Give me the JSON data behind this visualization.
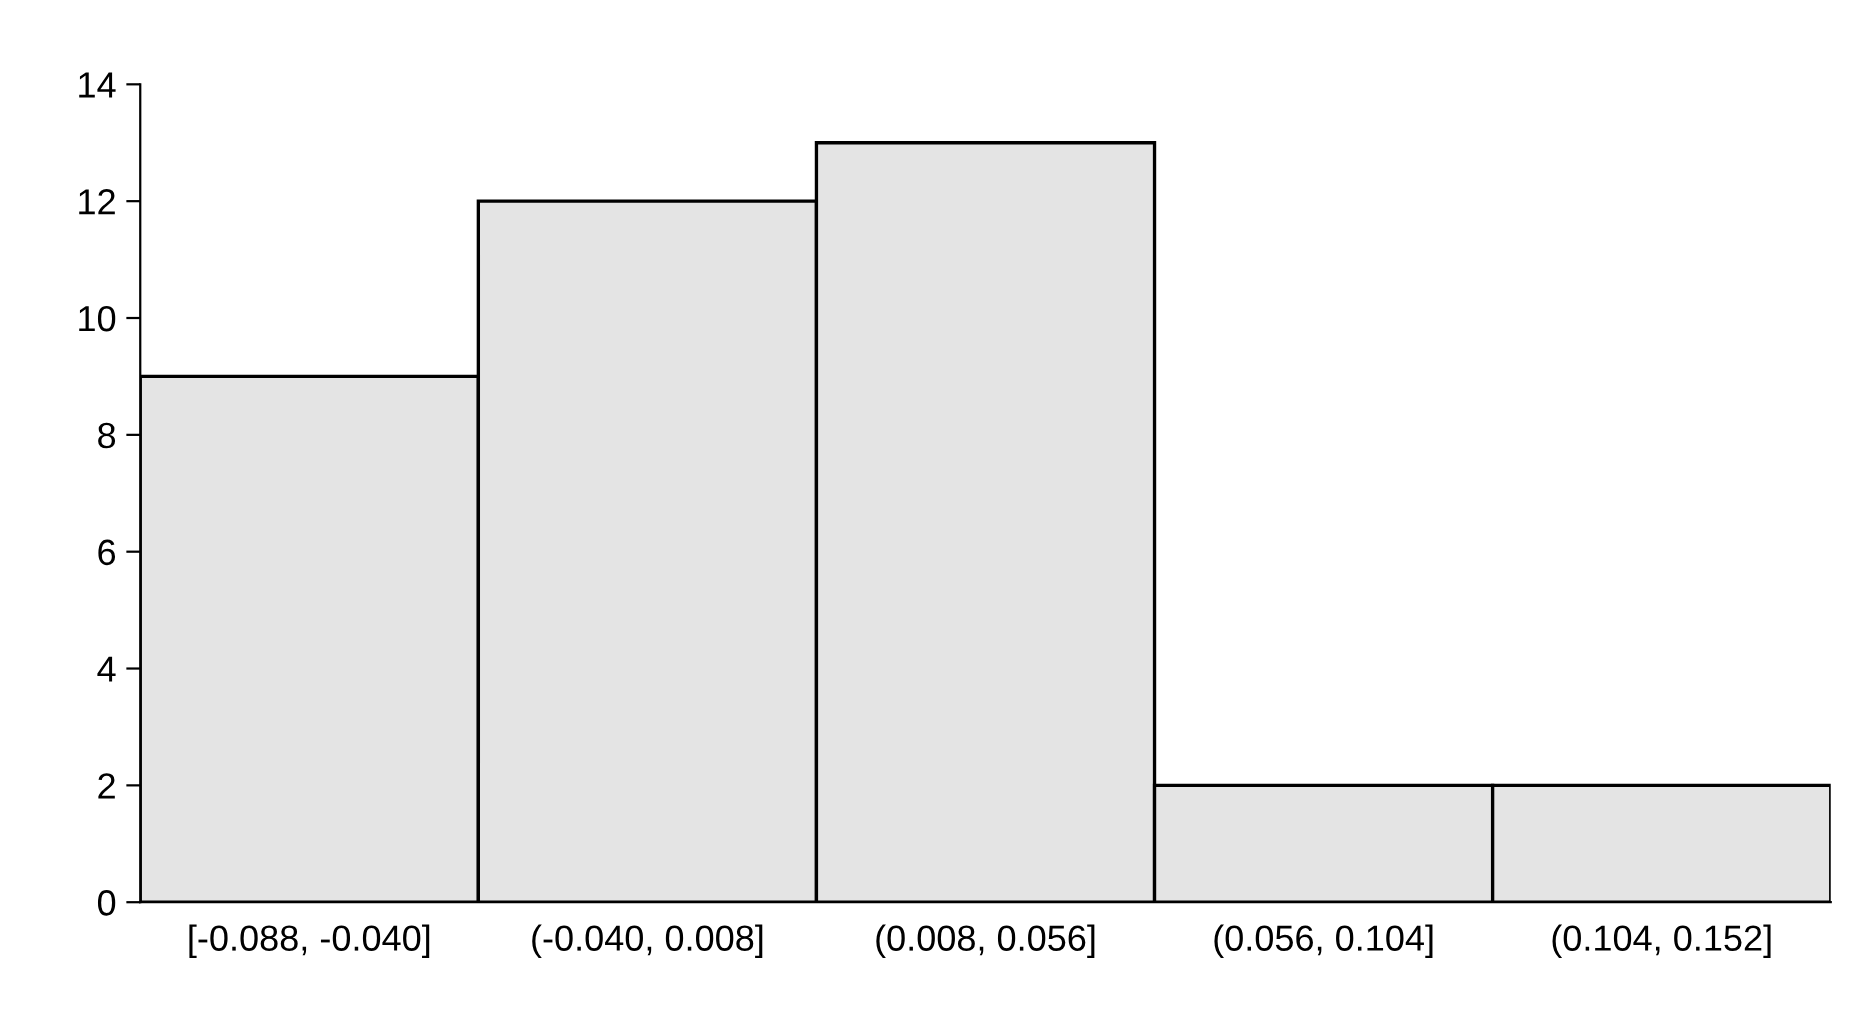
{
  "chart_data": {
    "type": "bar",
    "categories": [
      "[-0.088, -0.040]",
      "(-0.040, 0.008]",
      "(0.008, 0.056]",
      "(0.056, 0.104]",
      "(0.104, 0.152]"
    ],
    "values": [
      9,
      12,
      13,
      2,
      2
    ],
    "color": "#e4e4e4",
    "ylim": [
      0,
      14
    ],
    "yticks": [
      0,
      2,
      4,
      6,
      8,
      10,
      12,
      14
    ],
    "grid": false,
    "legend": false
  }
}
